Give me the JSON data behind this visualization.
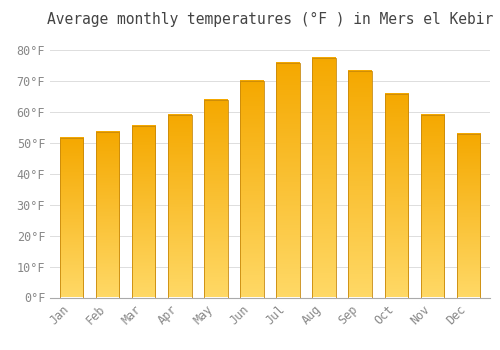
{
  "title": "Average monthly temperatures (°F ) in Mers el Kebir",
  "months": [
    "Jan",
    "Feb",
    "Mar",
    "Apr",
    "May",
    "Jun",
    "Jul",
    "Aug",
    "Sep",
    "Oct",
    "Nov",
    "Dec"
  ],
  "values": [
    51.5,
    53.5,
    55.5,
    59.0,
    64.0,
    70.0,
    76.0,
    77.5,
    73.5,
    66.0,
    59.0,
    53.0
  ],
  "bar_color_dark": "#F5A800",
  "bar_color_light": "#FFD966",
  "bar_edge_color": "#C8880A",
  "background_color": "#FFFFFF",
  "grid_color": "#DDDDDD",
  "ylim": [
    0,
    85
  ],
  "yticks": [
    0,
    10,
    20,
    30,
    40,
    50,
    60,
    70,
    80
  ],
  "ytick_labels": [
    "0°F",
    "10°F",
    "20°F",
    "30°F",
    "40°F",
    "50°F",
    "60°F",
    "70°F",
    "80°F"
  ],
  "title_fontsize": 10.5,
  "tick_fontsize": 8.5,
  "bar_width": 0.65
}
